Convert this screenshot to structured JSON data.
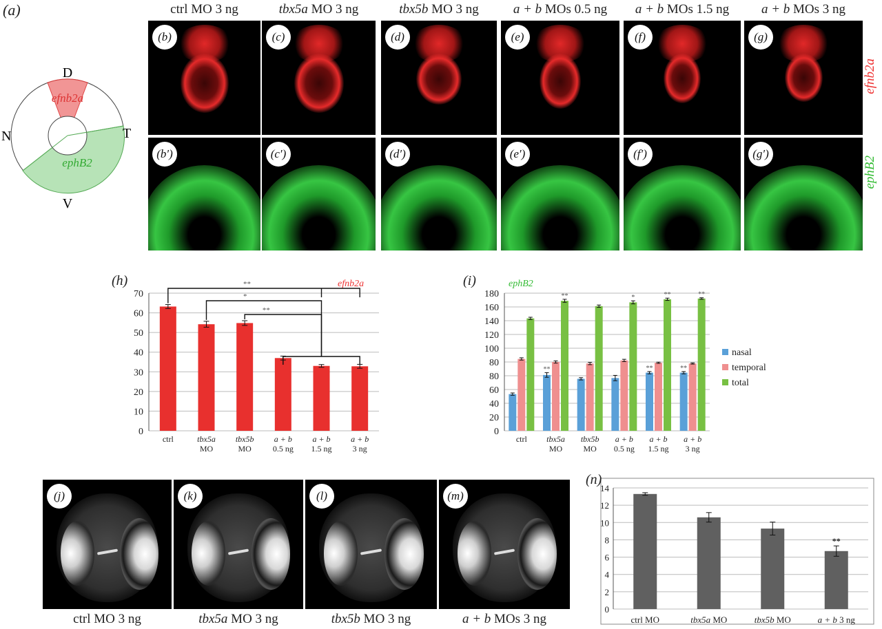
{
  "figure": {
    "panel_a_label": "(a)",
    "schematic": {
      "D": "D",
      "V": "V",
      "N": "N",
      "T": "T",
      "red_label": "efnb2a",
      "green_label": "ephB2",
      "colors": {
        "red": "#f08a8a",
        "green": "#8fd08f"
      }
    },
    "columns": [
      {
        "pre": "ctrl",
        "post": " MO 3 ng",
        "italic": ""
      },
      {
        "pre": "",
        "post": " MO 3 ng",
        "italic": "tbx5a"
      },
      {
        "pre": "",
        "post": " MO 3 ng",
        "italic": "tbx5b"
      },
      {
        "pre": "",
        "post": " MOs 0.5 ng",
        "italic": "a + b"
      },
      {
        "pre": "",
        "post": " MOs 1.5 ng",
        "italic": "a + b"
      },
      {
        "pre": "",
        "post": " MOs 3 ng",
        "italic": "a + b"
      }
    ],
    "row1_badges": [
      "(b)",
      "(c)",
      "(d)",
      "(e)",
      "(f)",
      "(g)"
    ],
    "row2_badges": [
      "(b′)",
      "(c′)",
      "(d′)",
      "(e′)",
      "(f′)",
      "(g′)"
    ],
    "row1_side_label": "efnb2a",
    "row2_side_label": "ephB2",
    "bottom_badges": [
      "(j)",
      "(k)",
      "(l)",
      "(m)"
    ],
    "bottom_captions": [
      {
        "pre": "ctrl",
        "post": " MO 3 ng",
        "italic": ""
      },
      {
        "pre": "",
        "post": " MO 3 ng",
        "italic": "tbx5a"
      },
      {
        "pre": "",
        "post": " MO 3 ng",
        "italic": "tbx5b"
      },
      {
        "pre": "",
        "post": " MOs 3 ng",
        "italic": "a + b"
      }
    ]
  },
  "chart_data": [
    {
      "panel": "(h)",
      "type": "bar",
      "title": "efnb2a",
      "categories": [
        [
          "ctrl"
        ],
        [
          "tbx5a",
          "MO"
        ],
        [
          "tbx5b",
          "MO"
        ],
        [
          "a + b",
          "0.5 ng"
        ],
        [
          "a + b",
          "1.5 ng"
        ],
        [
          "a + b",
          "3 ng"
        ]
      ],
      "values": [
        63.2,
        54.2,
        54.8,
        37.0,
        33.0,
        32.8
      ],
      "errors": [
        1.0,
        1.5,
        1.2,
        1.0,
        0.7,
        1.0
      ],
      "ylim": [
        0,
        70
      ],
      "yticks": [
        0,
        10,
        20,
        30,
        40,
        50,
        60,
        70
      ],
      "color": "#e8302e",
      "significance": [
        "**",
        "*",
        "**"
      ],
      "grid": true
    },
    {
      "panel": "(i)",
      "type": "bar",
      "title": "ephB2",
      "categories": [
        [
          "ctrl"
        ],
        [
          "tbx5a",
          "MO"
        ],
        [
          "tbx5b",
          "MO"
        ],
        [
          "a + b",
          "0.5 ng"
        ],
        [
          "a + b",
          "1.5 ng"
        ],
        [
          "a + b",
          "3 ng"
        ]
      ],
      "ytick_labels": [
        "0",
        "20",
        "40",
        "60",
        "80",
        "100",
        "120",
        "140",
        "160",
        "180"
      ],
      "ytick_printed": [
        "0",
        "20",
        "40",
        "60",
        "80",
        "80",
        "100",
        "120",
        "140",
        "160",
        "180"
      ],
      "ylim": [
        0,
        180
      ],
      "series": [
        {
          "name": "nasal",
          "color": "#5aa0d8",
          "values": [
            48,
            73,
            68,
            69,
            76,
            76
          ],
          "errors": [
            1.5,
            3,
            1.5,
            3.5,
            1.5,
            1.5
          ],
          "sig": [
            "",
            "**",
            "",
            "",
            "**",
            "**"
          ]
        },
        {
          "name": "temporal",
          "color": "#ef8f8f",
          "values": [
            94,
            90,
            88,
            92,
            89,
            88
          ],
          "errors": [
            1.5,
            1.5,
            1.5,
            1.5,
            0.8,
            0.8
          ],
          "sig": [
            "",
            "",
            "",
            "",
            "",
            ""
          ]
        },
        {
          "name": "total",
          "color": "#78c043",
          "values": [
            147,
            170,
            163,
            168,
            172,
            173
          ],
          "errors": [
            1.5,
            2,
            1.5,
            2,
            1.5,
            1
          ],
          "sig": [
            "",
            "**",
            "",
            "*",
            "**",
            "**"
          ]
        }
      ],
      "legend": "right",
      "grid": true
    },
    {
      "panel": "(n)",
      "type": "bar",
      "categories": [
        [
          "ctrl MO",
          ""
        ],
        [
          "tbx5a",
          " MO"
        ],
        [
          "tbx5b",
          " MO"
        ],
        [
          "a + b",
          " 3 ng"
        ]
      ],
      "values": [
        13.3,
        10.6,
        9.3,
        6.7
      ],
      "errors": [
        0.15,
        0.55,
        0.75,
        0.6
      ],
      "ylim": [
        0,
        14
      ],
      "yticks": [
        0,
        2,
        4,
        6,
        8,
        10,
        12,
        14
      ],
      "color": "#606060",
      "significance": [
        "",
        "",
        "",
        "**"
      ],
      "grid": true
    }
  ]
}
